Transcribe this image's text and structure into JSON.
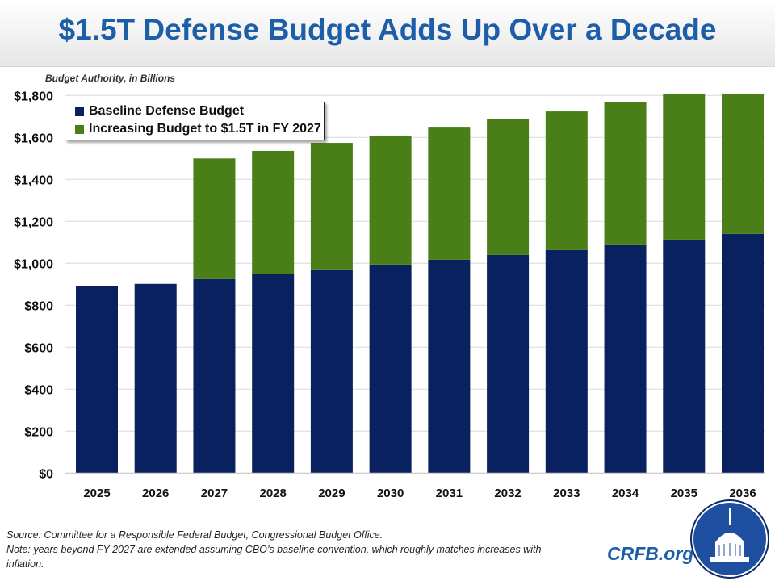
{
  "title": "$1.5T Defense Budget Adds Up Over a Decade",
  "footer": {
    "source": "Source: Committee for a Responsible Federal Budget, Congressional Budget Office.",
    "note": "Note: years beyond FY 2027 are extended assuming CBO’s baseline convention, which roughly matches increases with inflation.",
    "site": "CRFB.org",
    "logo_icon": "capitol-dome-logo"
  },
  "chart_data": {
    "type": "bar",
    "stacked": true,
    "title": "",
    "ylabel": "Budget Authority, in Billions",
    "xlabel": "",
    "ylim": [
      0,
      1800
    ],
    "yticks": [
      0,
      200,
      400,
      600,
      800,
      1000,
      1200,
      1400,
      1600,
      1800
    ],
    "ytick_labels": [
      "$0",
      "$200",
      "$400",
      "$600",
      "$800",
      "$1,000",
      "$1,200",
      "$1,400",
      "$1,600",
      "$1,800"
    ],
    "grid": true,
    "legend_position": "top-left",
    "categories": [
      "2025",
      "2026",
      "2027",
      "2028",
      "2029",
      "2030",
      "2031",
      "2032",
      "2033",
      "2034",
      "2035",
      "2036"
    ],
    "series": [
      {
        "name": "Baseline Defense Budget",
        "color": "#0a2160",
        "values": [
          890,
          902,
          925,
          948,
          971,
          994,
          1017,
          1040,
          1063,
          1090,
          1113,
          1140
        ]
      },
      {
        "name": "Increasing Budget to $1.5T in FY 2027",
        "color": "#4a7f18",
        "values": [
          0,
          0,
          575,
          588,
          603,
          615,
          630,
          646,
          661,
          677,
          696,
          669
        ]
      }
    ]
  }
}
